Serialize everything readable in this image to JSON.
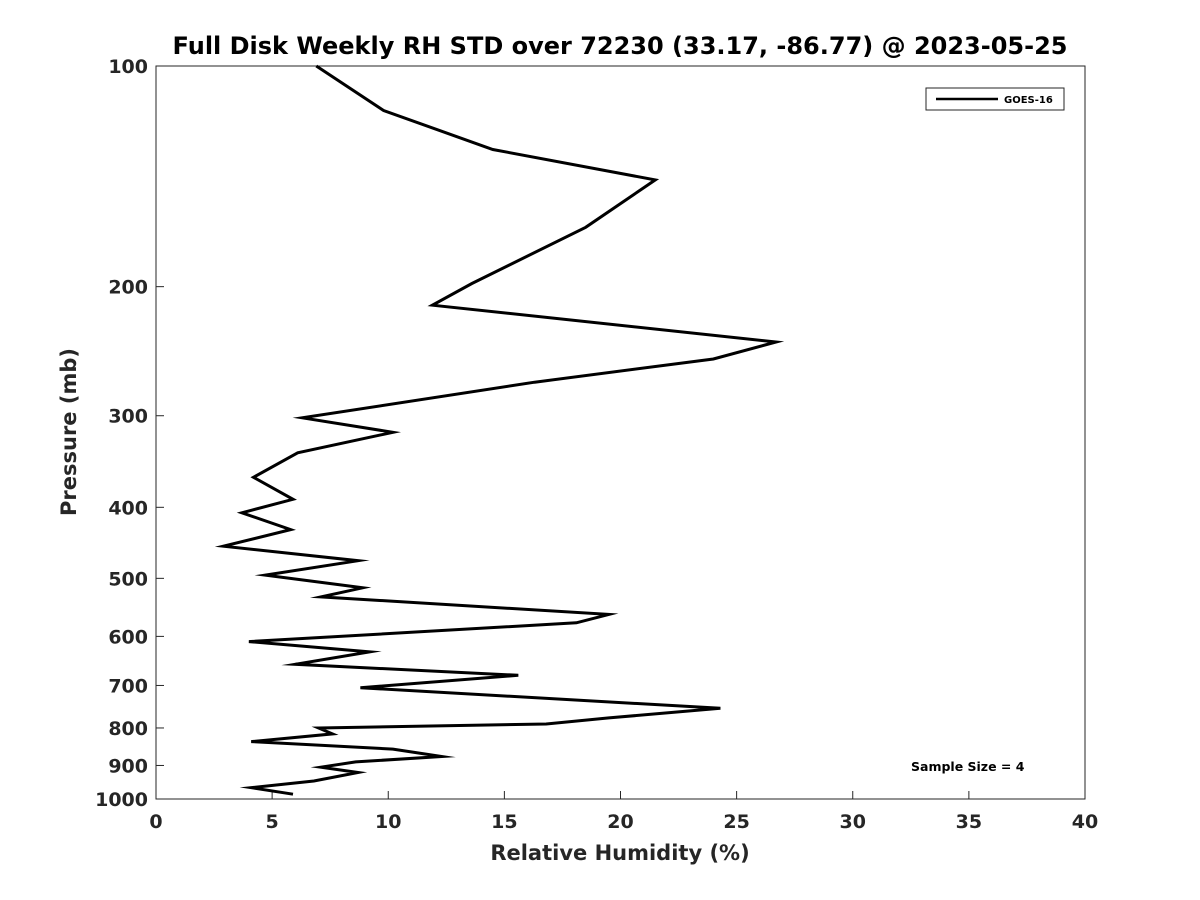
{
  "chart_data": {
    "type": "line",
    "title": "Full Disk Weekly RH STD over 72230 (33.17, -86.77) @ 2023-05-25",
    "xlabel": "Relative Humidity (%)",
    "ylabel": "Pressure (mb)",
    "xlim": [
      0,
      40
    ],
    "ylim": [
      100,
      1000
    ],
    "yscale": "log",
    "y_reversed": true,
    "xticks": [
      0,
      5,
      10,
      15,
      20,
      25,
      30,
      35,
      40
    ],
    "yticks": [
      100,
      200,
      300,
      400,
      500,
      600,
      700,
      800,
      900,
      1000
    ],
    "legend": {
      "position": "top-right",
      "entries": [
        "GOES-16"
      ]
    },
    "annotation": "Sample Size = 4",
    "series": [
      {
        "name": "GOES-16",
        "color": "#000000",
        "x": [
          6.9,
          9.8,
          14.5,
          21.5,
          18.5,
          13.6,
          11.9,
          26.7,
          24.0,
          16.3,
          6.3,
          10.2,
          6.1,
          4.2,
          5.9,
          3.7,
          5.8,
          2.9,
          8.7,
          4.7,
          8.9,
          7.1,
          19.5,
          18.1,
          4.0,
          9.2,
          6.0,
          15.6,
          8.8,
          24.3,
          19.5,
          16.8,
          7.0,
          7.6,
          4.1,
          10.2,
          12.3,
          8.6,
          7.1,
          8.7,
          6.8,
          4.1,
          5.9
        ],
        "y": [
          100,
          115,
          130,
          143,
          166,
          198,
          212,
          238,
          251,
          270,
          302,
          316,
          337,
          364,
          390,
          407,
          429,
          452,
          473,
          495,
          515,
          530,
          560,
          575,
          610,
          630,
          655,
          678,
          705,
          752,
          775,
          790,
          800,
          815,
          835,
          855,
          875,
          890,
          905,
          920,
          945,
          965,
          985
        ]
      }
    ]
  }
}
